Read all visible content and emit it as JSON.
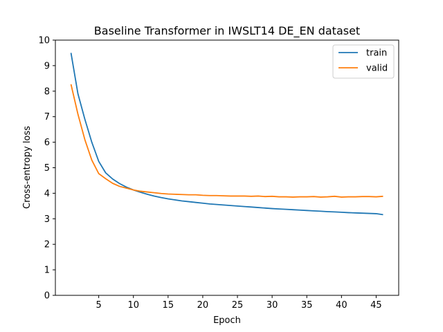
{
  "chart_data": {
    "type": "line",
    "title": "Baseline Transformer in IWSLT14 DE_EN dataset",
    "xlabel": "Epoch",
    "ylabel": "Cross-entropy loss",
    "xlim": [
      -1.25,
      48.25
    ],
    "ylim": [
      0,
      10
    ],
    "xticks": [
      5,
      10,
      15,
      20,
      25,
      30,
      35,
      40,
      45
    ],
    "yticks": [
      0,
      1,
      2,
      3,
      4,
      5,
      6,
      7,
      8,
      9,
      10
    ],
    "grid": false,
    "legend": "top-right",
    "x": [
      1,
      2,
      3,
      4,
      5,
      6,
      7,
      8,
      9,
      10,
      11,
      12,
      13,
      14,
      15,
      16,
      17,
      18,
      19,
      20,
      21,
      22,
      23,
      24,
      25,
      26,
      27,
      28,
      29,
      30,
      31,
      32,
      33,
      34,
      35,
      36,
      37,
      38,
      39,
      40,
      41,
      42,
      43,
      44,
      45,
      46
    ],
    "series": [
      {
        "name": "train",
        "color": "#1f77b4",
        "values": [
          9.5,
          7.9,
          6.9,
          6.0,
          5.25,
          4.8,
          4.56,
          4.38,
          4.24,
          4.13,
          4.04,
          3.96,
          3.89,
          3.83,
          3.78,
          3.74,
          3.7,
          3.67,
          3.64,
          3.61,
          3.58,
          3.56,
          3.54,
          3.52,
          3.5,
          3.48,
          3.46,
          3.44,
          3.42,
          3.4,
          3.385,
          3.37,
          3.355,
          3.34,
          3.325,
          3.31,
          3.295,
          3.28,
          3.27,
          3.255,
          3.24,
          3.23,
          3.22,
          3.21,
          3.2,
          3.16
        ]
      },
      {
        "name": "valid",
        "color": "#ff7f0e",
        "values": [
          8.27,
          7.1,
          6.1,
          5.3,
          4.77,
          4.57,
          4.39,
          4.27,
          4.2,
          4.13,
          4.08,
          4.05,
          4.02,
          3.99,
          3.97,
          3.96,
          3.95,
          3.94,
          3.94,
          3.92,
          3.91,
          3.91,
          3.9,
          3.89,
          3.89,
          3.89,
          3.88,
          3.89,
          3.87,
          3.88,
          3.86,
          3.86,
          3.85,
          3.86,
          3.86,
          3.87,
          3.85,
          3.86,
          3.88,
          3.85,
          3.86,
          3.86,
          3.87,
          3.87,
          3.86,
          3.88
        ]
      }
    ]
  }
}
